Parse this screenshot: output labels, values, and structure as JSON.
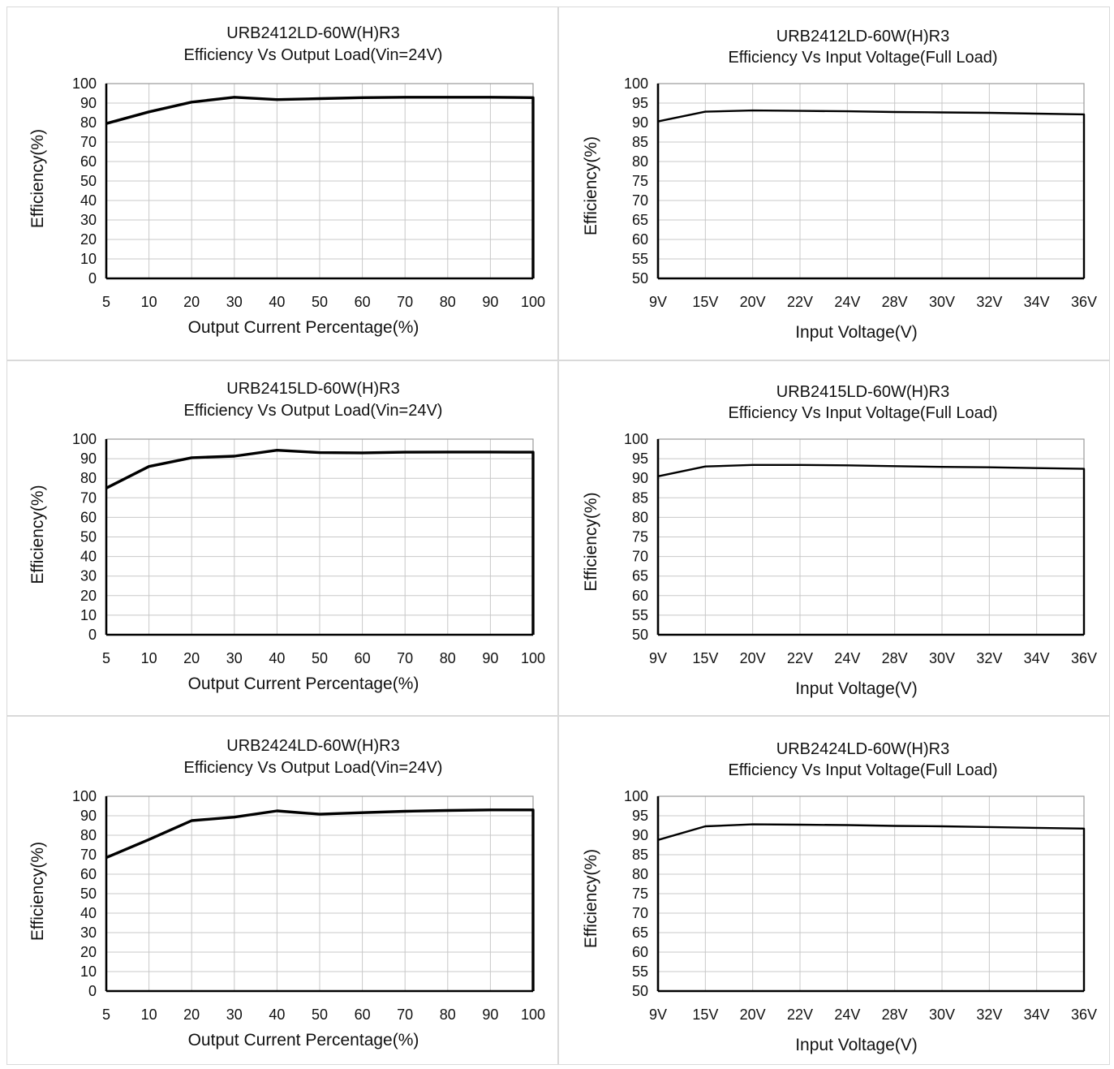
{
  "chart_data": [
    {
      "type": "line",
      "title": "URB2412LD-60W(H)R3",
      "subtitle": "Efficiency Vs Output Load(Vin=24V)",
      "xlabel": "Output Current Percentage(%)",
      "ylabel": "Efficiency(%)",
      "categories": [
        "5",
        "10",
        "20",
        "30",
        "40",
        "50",
        "60",
        "70",
        "80",
        "90",
        "100"
      ],
      "yticks": [
        "0",
        "10",
        "20",
        "30",
        "40",
        "50",
        "60",
        "70",
        "80",
        "90",
        "100"
      ],
      "ylim": [
        0,
        100
      ],
      "grid": true,
      "series": [
        {
          "values": [
            79.5,
            85.5,
            90.5,
            93,
            91.8,
            92.3,
            92.8,
            93,
            93,
            93,
            92.8
          ]
        }
      ]
    },
    {
      "type": "line",
      "title": "URB2412LD-60W(H)R3",
      "subtitle": "Efficiency Vs Input Voltage(Full Load)",
      "xlabel": "Input Voltage(V)",
      "ylabel": "Efficiency(%)",
      "categories": [
        "9V",
        "15V",
        "20V",
        "22V",
        "24V",
        "28V",
        "30V",
        "32V",
        "34V",
        "36V"
      ],
      "yticks": [
        "50",
        "55",
        "60",
        "65",
        "70",
        "75",
        "80",
        "85",
        "90",
        "95",
        "100"
      ],
      "ylim": [
        50,
        100
      ],
      "grid": true,
      "series": [
        {
          "values": [
            90.3,
            92.8,
            93.1,
            93,
            92.9,
            92.7,
            92.6,
            92.5,
            92.3,
            92.1
          ]
        }
      ]
    },
    {
      "type": "line",
      "title": "URB2415LD-60W(H)R3",
      "subtitle": "Efficiency Vs Output Load(Vin=24V)",
      "xlabel": "Output Current Percentage(%)",
      "ylabel": "Efficiency(%)",
      "categories": [
        "5",
        "10",
        "20",
        "30",
        "40",
        "50",
        "60",
        "70",
        "80",
        "90",
        "100"
      ],
      "yticks": [
        "0",
        "10",
        "20",
        "30",
        "40",
        "50",
        "60",
        "70",
        "80",
        "90",
        "100"
      ],
      "ylim": [
        0,
        100
      ],
      "grid": true,
      "series": [
        {
          "values": [
            75,
            86,
            90.5,
            91.3,
            94.3,
            93.1,
            93,
            93.3,
            93.4,
            93.4,
            93.3
          ]
        }
      ]
    },
    {
      "type": "line",
      "title": "URB2415LD-60W(H)R3",
      "subtitle": "Efficiency Vs Input Voltage(Full Load)",
      "xlabel": "Input Voltage(V)",
      "ylabel": "Efficiency(%)",
      "categories": [
        "9V",
        "15V",
        "20V",
        "22V",
        "24V",
        "28V",
        "30V",
        "32V",
        "34V",
        "36V"
      ],
      "yticks": [
        "50",
        "55",
        "60",
        "65",
        "70",
        "75",
        "80",
        "85",
        "90",
        "95",
        "100"
      ],
      "ylim": [
        50,
        100
      ],
      "grid": true,
      "series": [
        {
          "values": [
            90.5,
            93,
            93.4,
            93.4,
            93.3,
            93.1,
            92.9,
            92.8,
            92.6,
            92.4
          ]
        }
      ]
    },
    {
      "type": "line",
      "title": "URB2424LD-60W(H)R3",
      "subtitle": "Efficiency Vs Output Load(Vin=24V)",
      "xlabel": "Output Current Percentage(%)",
      "ylabel": "Efficiency(%)",
      "categories": [
        "5",
        "10",
        "20",
        "30",
        "40",
        "50",
        "60",
        "70",
        "80",
        "90",
        "100"
      ],
      "yticks": [
        "0",
        "10",
        "20",
        "30",
        "40",
        "50",
        "60",
        "70",
        "80",
        "90",
        "100"
      ],
      "ylim": [
        0,
        100
      ],
      "grid": true,
      "series": [
        {
          "values": [
            68.5,
            77.8,
            87.5,
            89.3,
            92.5,
            90.8,
            91.6,
            92.3,
            92.7,
            93,
            93
          ]
        }
      ]
    },
    {
      "type": "line",
      "title": "URB2424LD-60W(H)R3",
      "subtitle": "Efficiency Vs Input Voltage(Full Load)",
      "xlabel": "Input Voltage(V)",
      "ylabel": "Efficiency(%)",
      "categories": [
        "9V",
        "15V",
        "20V",
        "22V",
        "24V",
        "28V",
        "30V",
        "32V",
        "34V",
        "36V"
      ],
      "yticks": [
        "50",
        "55",
        "60",
        "65",
        "70",
        "75",
        "80",
        "85",
        "90",
        "95",
        "100"
      ],
      "ylim": [
        50,
        100
      ],
      "grid": true,
      "series": [
        {
          "values": [
            88.8,
            92.3,
            92.8,
            92.7,
            92.6,
            92.4,
            92.3,
            92.1,
            91.9,
            91.7
          ]
        }
      ]
    }
  ]
}
